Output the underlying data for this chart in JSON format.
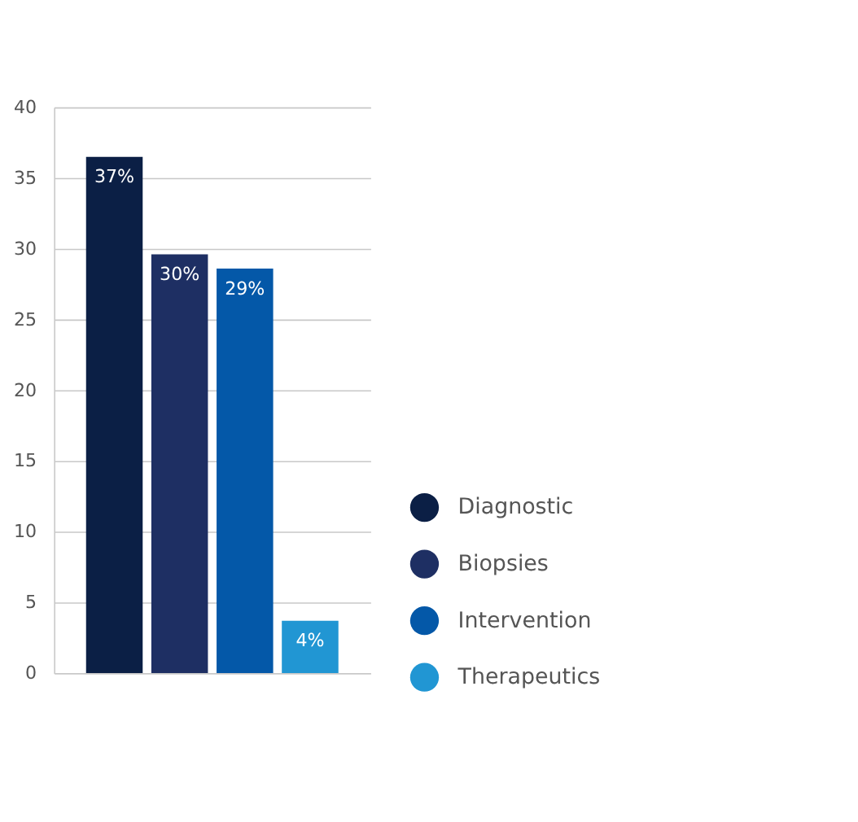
{
  "chart_data": {
    "type": "bar",
    "categories": [
      null,
      null,
      null,
      null
    ],
    "series": [
      {
        "name": "Diagnostic",
        "color": "#0b1f45",
        "values": [
          36.5,
          null,
          null,
          null
        ],
        "value_labels": [
          "37%",
          null,
          null,
          null
        ]
      },
      {
        "name": "Biopsies",
        "color": "#1e2f63",
        "values": [
          null,
          29.6,
          null,
          null
        ],
        "value_labels": [
          null,
          "30%",
          null,
          null
        ]
      },
      {
        "name": "Intervention",
        "color": "#0458a8",
        "values": [
          null,
          null,
          28.6,
          null
        ],
        "value_labels": [
          null,
          null,
          "29%",
          null
        ]
      },
      {
        "name": "Therapeutics",
        "color": "#2196d3",
        "values": [
          null,
          null,
          null,
          3.7
        ],
        "value_labels": [
          null,
          null,
          null,
          "4%"
        ]
      }
    ],
    "ylim": [
      0,
      40
    ],
    "yticks": [
      0,
      5,
      10,
      15,
      20,
      25,
      30,
      35,
      40
    ],
    "grid": "y",
    "legend": "bottom right"
  }
}
